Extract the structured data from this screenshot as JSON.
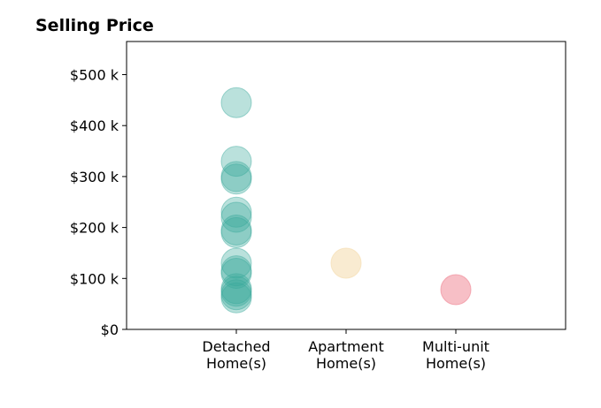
{
  "chart_data": {
    "type": "scatter",
    "title": "Selling Price",
    "xlabel": "",
    "ylabel": "",
    "categories": [
      [
        "Detached",
        "Home(s)"
      ],
      [
        "Apartment",
        "Home(s)"
      ],
      [
        "Multi-unit",
        "Home(s)"
      ]
    ],
    "xlim": [
      -1,
      3
    ],
    "ylim": [
      0,
      565
    ],
    "yticks": [
      0,
      100,
      200,
      300,
      400,
      500
    ],
    "ytick_labels": [
      "$0",
      "$100 k",
      "$200 k",
      "$300 k",
      "$400 k",
      "$500 k"
    ],
    "grid": false,
    "legend": "none",
    "series": [
      {
        "category_index": 0,
        "color": "#3aa89b",
        "opacity": 0.35,
        "values": [
          445,
          330,
          300,
          295,
          230,
          220,
          195,
          190,
          130,
          115,
          110,
          80,
          75,
          68,
          62
        ]
      },
      {
        "category_index": 1,
        "color": "#f5deb3",
        "opacity": 0.6,
        "values": [
          130
        ]
      },
      {
        "category_index": 2,
        "color": "#f08a98",
        "opacity": 0.55,
        "values": [
          78
        ]
      }
    ]
  }
}
